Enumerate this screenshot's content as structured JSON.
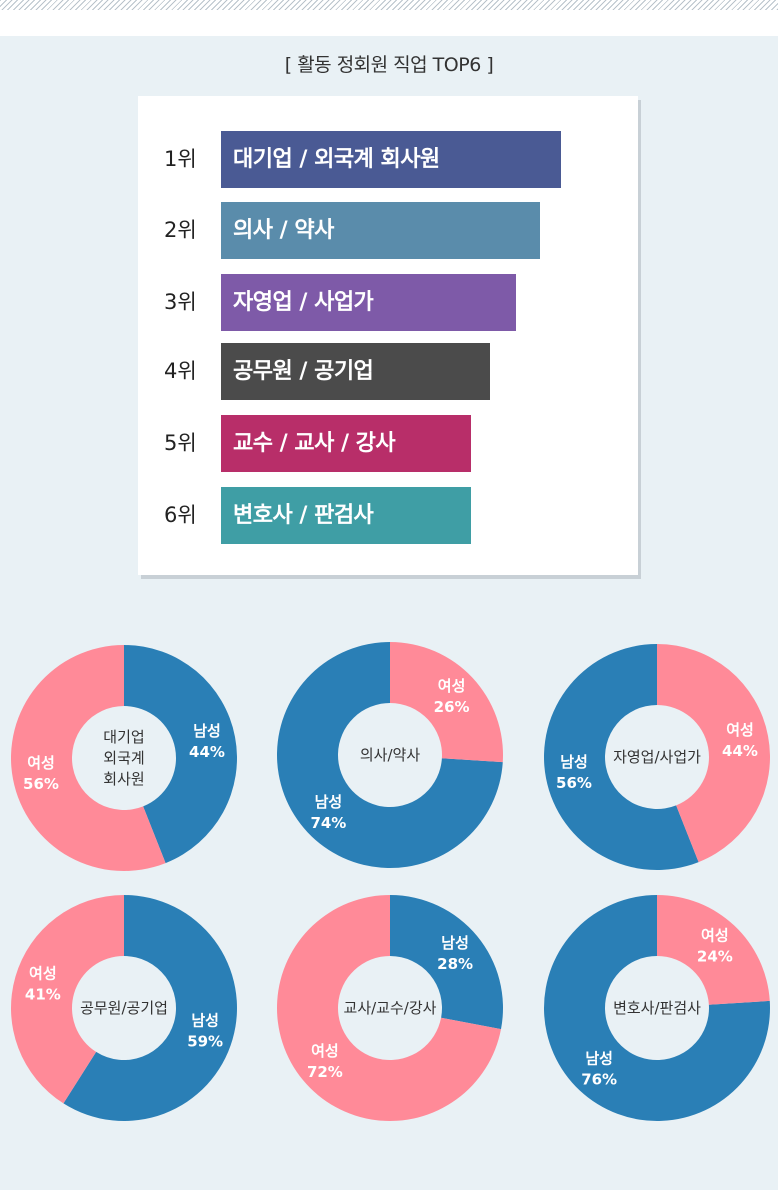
{
  "title": "[ 활동 정회원 직업 TOP6 ]",
  "colors": {
    "female": "#ff8a98",
    "male": "#2a7fb6",
    "panel": "#e9f1f5"
  },
  "ranking": [
    {
      "rank": "1위",
      "label": "대기업 / 외국계 회사원",
      "color": "#4a5a94",
      "score": 340
    },
    {
      "rank": "2위",
      "label": "의사 / 약사",
      "color": "#5a8cab",
      "score": 319
    },
    {
      "rank": "3위",
      "label": "자영업 / 사업가",
      "color": "#7e5aa8",
      "score": 295
    },
    {
      "rank": "4위",
      "label": "공무원 / 공기업",
      "color": "#4b4b4b",
      "score": 269
    },
    {
      "rank": "5위",
      "label": "교수 / 교사 / 강사",
      "color": "#b82e69",
      "score": 250
    },
    {
      "rank": "6위",
      "label": "변호사 / 판검사",
      "color": "#3f9ea5",
      "score": 250
    }
  ],
  "chart_data": [
    {
      "type": "pie",
      "title": "대기업\n외국계\n회사원",
      "female_label": "여성",
      "female_pct": 56,
      "male_label": "남성",
      "male_pct": 44
    },
    {
      "type": "pie",
      "title": "의사/약사",
      "female_label": "여성",
      "female_pct": 26,
      "male_label": "남성",
      "male_pct": 74
    },
    {
      "type": "pie",
      "title": "자영업/사업가",
      "female_label": "여성",
      "female_pct": 44,
      "male_label": "남성",
      "male_pct": 56
    },
    {
      "type": "pie",
      "title": "공무원/공기업",
      "female_label": "여성",
      "female_pct": 41,
      "male_label": "남성",
      "male_pct": 59
    },
    {
      "type": "pie",
      "title": "교사/교수/강사",
      "female_label": "여성",
      "female_pct": 72,
      "male_label": "남성",
      "male_pct": 28
    },
    {
      "type": "pie",
      "title": "변호사/판검사",
      "female_label": "여성",
      "female_pct": 24,
      "male_label": "남성",
      "male_pct": 76
    }
  ]
}
